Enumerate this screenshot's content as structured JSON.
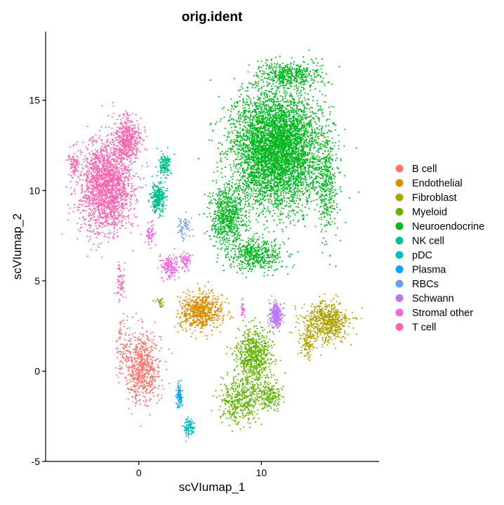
{
  "chart_data": {
    "type": "scatter",
    "title": "orig.ident",
    "xlabel": "scVIumap_1",
    "ylabel": "scVIumap_2",
    "xlim": [
      -7.6,
      19.6
    ],
    "ylim": [
      -5,
      18.8
    ],
    "xticks": [
      0,
      10
    ],
    "yticks": [
      -5,
      0,
      5,
      10,
      15
    ],
    "grid": false,
    "legend_position": "right",
    "series": [
      {
        "name": "B cell",
        "color": "#F8766D",
        "clusters": [
          {
            "cx": 0.3,
            "cy": 0.2,
            "sx": 1.2,
            "sy": 1.6,
            "n": 700
          },
          {
            "cx": -1.2,
            "cy": 1.5,
            "sx": 0.5,
            "sy": 1.2,
            "n": 80
          }
        ]
      },
      {
        "name": "Endothelial",
        "color": "#DB8E00",
        "clusters": [
          {
            "cx": 5.1,
            "cy": 3.3,
            "sx": 1.4,
            "sy": 0.8,
            "n": 700
          }
        ]
      },
      {
        "name": "Fibroblast",
        "color": "#AEA200",
        "clusters": [
          {
            "cx": 15.3,
            "cy": 2.7,
            "sx": 1.5,
            "sy": 0.9,
            "n": 650
          },
          {
            "cx": 13.8,
            "cy": 1.6,
            "sx": 0.5,
            "sy": 0.8,
            "n": 120
          }
        ]
      },
      {
        "name": "Myeloid",
        "color": "#64B200",
        "clusters": [
          {
            "cx": 9.4,
            "cy": 0.9,
            "sx": 1.1,
            "sy": 1.2,
            "n": 700
          },
          {
            "cx": 8.3,
            "cy": -1.6,
            "sx": 1.3,
            "sy": 1.0,
            "n": 450
          },
          {
            "cx": 10.7,
            "cy": -1.3,
            "sx": 0.8,
            "sy": 0.6,
            "n": 200
          },
          {
            "cx": 1.7,
            "cy": 3.8,
            "sx": 0.3,
            "sy": 0.2,
            "n": 25
          }
        ]
      },
      {
        "name": "Neuroendocrine",
        "color": "#00B81F",
        "clusters": [
          {
            "cx": 11.2,
            "cy": 12.3,
            "sx": 2.9,
            "sy": 2.5,
            "n": 5200
          },
          {
            "cx": 7.2,
            "cy": 8.6,
            "sx": 1.2,
            "sy": 1.4,
            "n": 700
          },
          {
            "cx": 9.5,
            "cy": 6.4,
            "sx": 1.7,
            "sy": 0.7,
            "n": 500
          },
          {
            "cx": 12.5,
            "cy": 16.4,
            "sx": 2.2,
            "sy": 0.6,
            "n": 450
          },
          {
            "cx": 15.3,
            "cy": 10.2,
            "sx": 0.7,
            "sy": 2.2,
            "n": 350
          }
        ]
      },
      {
        "name": "NK cell",
        "color": "#00C08B",
        "clusters": [
          {
            "cx": 1.6,
            "cy": 9.6,
            "sx": 0.45,
            "sy": 0.7,
            "n": 300
          },
          {
            "cx": 2.1,
            "cy": 11.4,
            "sx": 0.4,
            "sy": 0.5,
            "n": 130
          }
        ]
      },
      {
        "name": "pDC",
        "color": "#00BFC4",
        "clusters": [
          {
            "cx": 4.1,
            "cy": -3.1,
            "sx": 0.3,
            "sy": 0.4,
            "n": 110
          }
        ]
      },
      {
        "name": "Plasma",
        "color": "#00A5FF",
        "clusters": [
          {
            "cx": 3.3,
            "cy": -1.4,
            "sx": 0.2,
            "sy": 0.6,
            "n": 90
          }
        ]
      },
      {
        "name": "RBCs",
        "color": "#619CFF",
        "clusters": [
          {
            "cx": 3.7,
            "cy": 7.9,
            "sx": 0.5,
            "sy": 0.6,
            "n": 60
          }
        ]
      },
      {
        "name": "Schwann",
        "color": "#BB74FF",
        "clusters": [
          {
            "cx": 11.2,
            "cy": 3.1,
            "sx": 0.45,
            "sy": 0.5,
            "n": 260
          }
        ]
      },
      {
        "name": "Stromal other",
        "color": "#F564E3",
        "clusters": [
          {
            "cx": 2.5,
            "cy": 5.8,
            "sx": 0.6,
            "sy": 0.5,
            "n": 160
          },
          {
            "cx": 3.8,
            "cy": 6.1,
            "sx": 0.3,
            "sy": 0.4,
            "n": 70
          },
          {
            "cx": 0.9,
            "cy": 7.6,
            "sx": 0.25,
            "sy": 0.5,
            "n": 60
          },
          {
            "cx": 8.5,
            "cy": 3.5,
            "sx": 0.15,
            "sy": 0.4,
            "n": 30
          }
        ]
      },
      {
        "name": "T cell",
        "color": "#FF64B0",
        "clusters": [
          {
            "cx": -2.7,
            "cy": 10.2,
            "sx": 1.7,
            "sy": 2.0,
            "n": 2000
          },
          {
            "cx": -1.0,
            "cy": 12.8,
            "sx": 0.9,
            "sy": 1.0,
            "n": 500
          },
          {
            "cx": -5.3,
            "cy": 11.5,
            "sx": 0.4,
            "sy": 0.6,
            "n": 90
          },
          {
            "cx": -1.5,
            "cy": 4.9,
            "sx": 0.3,
            "sy": 0.9,
            "n": 60
          }
        ]
      }
    ]
  }
}
